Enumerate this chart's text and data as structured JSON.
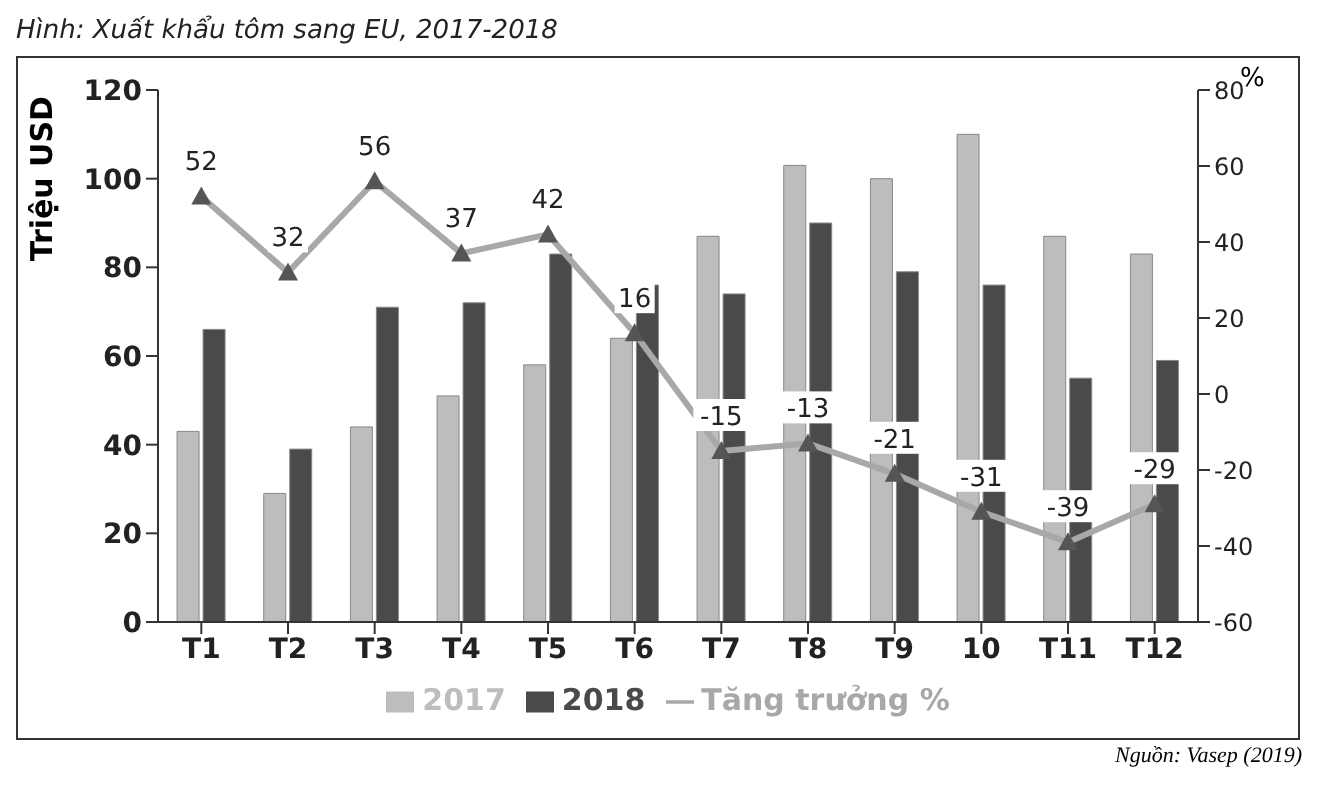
{
  "chart_data": {
    "type": "bar",
    "title": "Hình: Xuất khẩu tôm sang EU, 2017-2018",
    "ylabel": "Triệu USD",
    "y2label": "%",
    "annotations": [
      "Nguồn: Vasep (2019)"
    ],
    "categories": [
      "T1",
      "T2",
      "T3",
      "T4",
      "T5",
      "T6",
      "T7",
      "T8",
      "T9",
      "10",
      "T11",
      "T12"
    ],
    "series": [
      {
        "name": "2017",
        "color": "#bdbdbd",
        "values": [
          43,
          29,
          44,
          51,
          58,
          64,
          87,
          103,
          100,
          110,
          87,
          83
        ]
      },
      {
        "name": "2018",
        "color": "#4a4a4a",
        "values": [
          66,
          39,
          71,
          72,
          83,
          76,
          74,
          90,
          79,
          76,
          55,
          59
        ]
      },
      {
        "name": "Tăng trưởng %",
        "type": "line",
        "axis": "y2",
        "color": "#a8a8a8",
        "marker": "triangle",
        "data_labels": true,
        "values": [
          52,
          32,
          56,
          37,
          42,
          16,
          -15,
          -13,
          -21,
          -31,
          -39,
          -29
        ]
      }
    ],
    "ylim": [
      0,
      120
    ],
    "yticks": [
      0,
      20,
      40,
      60,
      80,
      100,
      120
    ],
    "y2lim": [
      -60,
      80
    ],
    "y2ticks": [
      -60,
      -40,
      -20,
      0,
      20,
      40,
      60,
      80
    ],
    "legend": "bottom",
    "grid": false
  }
}
